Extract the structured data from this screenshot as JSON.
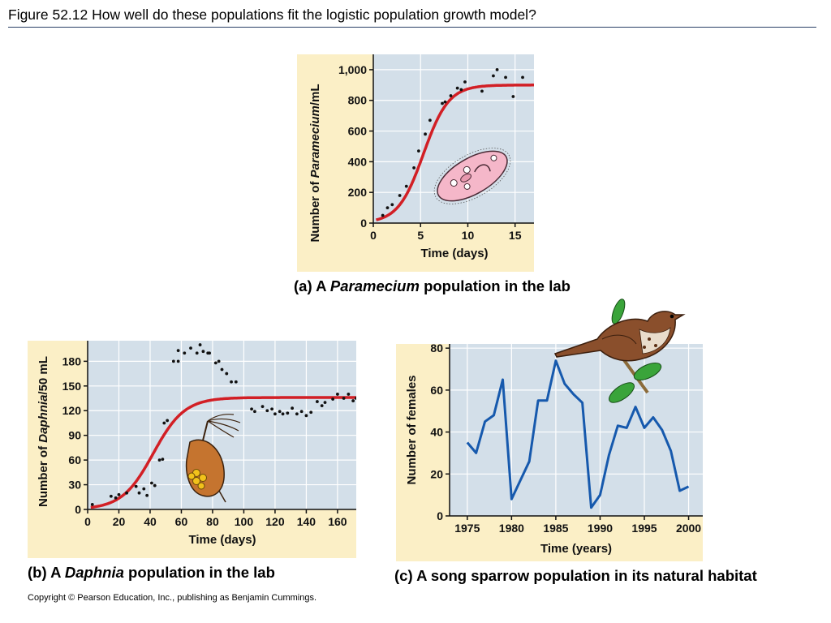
{
  "figure_title": "Figure 52.12  How well do these populations fit the logistic population growth model?",
  "copyright": "Copyright © Pearson Education, Inc., publishing as Benjamin Cummings.",
  "colors": {
    "panel_bg": "#fbefc6",
    "plot_bg": "#d3dfe9",
    "curve_red": "#d21f25",
    "line_blue": "#1659ad",
    "points": "#111111"
  },
  "icons": {
    "paramecium": "paramecium-illustration",
    "daphnia": "daphnia-illustration",
    "sparrow": "song-sparrow-illustration"
  },
  "chart_data": [
    {
      "id": "a",
      "type": "scatter",
      "caption": {
        "label": "(a) A ",
        "italic": "Paramecium",
        "rest": " population in the lab"
      },
      "xlabel": "Time (days)",
      "ylabel": {
        "pre": "Number of ",
        "italic": "Paramecium",
        "post": "/mL"
      },
      "xlim": [
        0,
        17
      ],
      "ylim": [
        0,
        1100
      ],
      "xticks": [
        0,
        5,
        10,
        15
      ],
      "yticks": [
        0,
        200,
        400,
        600,
        800,
        1000
      ],
      "ytick_labels": [
        "0",
        "200",
        "400",
        "600",
        "800",
        "1,000"
      ],
      "grid": true,
      "points": [
        [
          1,
          50
        ],
        [
          1.5,
          100
        ],
        [
          2,
          120
        ],
        [
          2.8,
          180
        ],
        [
          3.5,
          240
        ],
        [
          4.3,
          360
        ],
        [
          4.8,
          470
        ],
        [
          5.5,
          580
        ],
        [
          6,
          670
        ],
        [
          7.3,
          780
        ],
        [
          7.6,
          790
        ],
        [
          8.2,
          830
        ],
        [
          8.9,
          880
        ],
        [
          9.3,
          870
        ],
        [
          9.7,
          920
        ],
        [
          11.5,
          860
        ],
        [
          12.7,
          960
        ],
        [
          13.1,
          1000
        ],
        [
          14,
          950
        ],
        [
          14.8,
          825
        ],
        [
          15.8,
          950
        ]
      ],
      "logistic": {
        "K": 900,
        "r": 0.75,
        "t_mid": 5.3,
        "t_start": 0.3
      }
    },
    {
      "id": "b",
      "type": "scatter",
      "caption": {
        "label": "(b) A ",
        "italic": "Daphnia",
        "rest": " population in the lab"
      },
      "xlabel": "Time (days)",
      "ylabel": {
        "pre": "Number of ",
        "italic": "Daphnia",
        "post": "/50 mL"
      },
      "xlim": [
        0,
        172
      ],
      "ylim": [
        0,
        205
      ],
      "xticks": [
        0,
        20,
        40,
        60,
        80,
        100,
        120,
        140,
        160
      ],
      "yticks": [
        0,
        30,
        60,
        90,
        120,
        150,
        180
      ],
      "grid": true,
      "points": [
        [
          3,
          6
        ],
        [
          15,
          16
        ],
        [
          18,
          14
        ],
        [
          20,
          18
        ],
        [
          25,
          20
        ],
        [
          31,
          28
        ],
        [
          33,
          20
        ],
        [
          36,
          25
        ],
        [
          38,
          17
        ],
        [
          41,
          32
        ],
        [
          43,
          29
        ],
        [
          46,
          60
        ],
        [
          48,
          61
        ],
        [
          49,
          105
        ],
        [
          51,
          108
        ],
        [
          55,
          180
        ],
        [
          58,
          180
        ],
        [
          58,
          193
        ],
        [
          62,
          190
        ],
        [
          66,
          196
        ],
        [
          70,
          190
        ],
        [
          72,
          200
        ],
        [
          74,
          192
        ],
        [
          77,
          190
        ],
        [
          78,
          190
        ],
        [
          82,
          178
        ],
        [
          84,
          180
        ],
        [
          86,
          170
        ],
        [
          89,
          165
        ],
        [
          92,
          155
        ],
        [
          95,
          155
        ],
        [
          105,
          122
        ],
        [
          107,
          119
        ],
        [
          112,
          125
        ],
        [
          115,
          120
        ],
        [
          118,
          122
        ],
        [
          120,
          116
        ],
        [
          123,
          119
        ],
        [
          125,
          116
        ],
        [
          128,
          117
        ],
        [
          131,
          123
        ],
        [
          134,
          116
        ],
        [
          137,
          119
        ],
        [
          140,
          114
        ],
        [
          143,
          118
        ],
        [
          147,
          131
        ],
        [
          150,
          126
        ],
        [
          152,
          130
        ],
        [
          157,
          134
        ],
        [
          160,
          140
        ],
        [
          164,
          135
        ],
        [
          167,
          140
        ],
        [
          170,
          132
        ],
        [
          172,
          135
        ]
      ],
      "logistic": {
        "K": 136,
        "r": 0.1,
        "t_mid": 42,
        "t_start": 2
      }
    },
    {
      "id": "c",
      "type": "line",
      "caption": {
        "label": "(c) A song sparrow population in its natural habitat"
      },
      "xlabel": "Time (years)",
      "ylabel": {
        "pre": "Number of females",
        "italic": "",
        "post": ""
      },
      "xlim": [
        1973,
        2001.6
      ],
      "ylim": [
        0,
        82
      ],
      "xticks": [
        1975,
        1980,
        1985,
        1990,
        1995,
        2000
      ],
      "yticks": [
        0,
        20,
        40,
        60,
        80
      ],
      "grid": true,
      "x": [
        1975,
        1976,
        1977,
        1978,
        1979,
        1980,
        1981,
        1982,
        1983,
        1984,
        1985,
        1986,
        1987,
        1988,
        1989,
        1990,
        1991,
        1992,
        1993,
        1994,
        1995,
        1996,
        1997,
        1998,
        1999,
        2000
      ],
      "y": [
        35,
        30,
        45,
        48,
        65,
        8,
        17,
        26,
        55,
        55,
        74,
        63,
        58,
        54,
        4,
        10,
        29,
        43,
        42,
        52,
        42,
        47,
        41,
        31,
        12,
        14
      ]
    }
  ]
}
